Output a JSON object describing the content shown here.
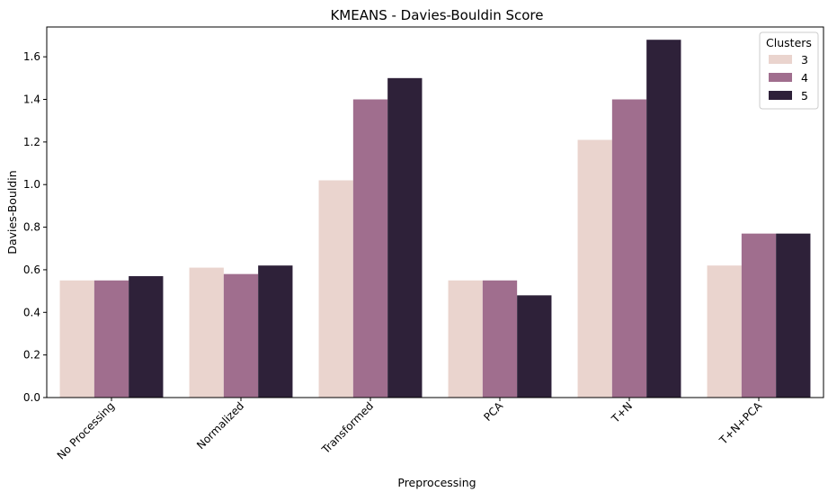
{
  "chart_data": {
    "type": "bar",
    "title": "KMEANS - Davies-Bouldin Score",
    "xlabel": "Preprocessing",
    "ylabel": "Davies-Bouldin",
    "categories": [
      "No Processing",
      "Normalized",
      "Transformed",
      "PCA",
      "T+N",
      "T+N+PCA"
    ],
    "series": [
      {
        "name": "3",
        "color": "#ead4ce",
        "values": [
          0.55,
          0.61,
          1.02,
          0.55,
          1.21,
          0.62
        ]
      },
      {
        "name": "4",
        "color": "#a06e8e",
        "values": [
          0.55,
          0.58,
          1.4,
          0.55,
          1.4,
          0.77
        ]
      },
      {
        "name": "5",
        "color": "#2e2139",
        "values": [
          0.57,
          0.62,
          1.5,
          0.48,
          1.68,
          0.77
        ]
      }
    ],
    "ylim": [
      0,
      1.74
    ],
    "yticks": [
      0.0,
      0.2,
      0.4,
      0.6,
      0.8,
      1.0,
      1.2,
      1.4,
      1.6
    ],
    "ytick_labels": [
      "0.0",
      "0.2",
      "0.4",
      "0.6",
      "0.8",
      "1.0",
      "1.2",
      "1.4",
      "1.6"
    ],
    "legend": {
      "title": "Clusters",
      "position": "top-right"
    },
    "grid": false
  }
}
